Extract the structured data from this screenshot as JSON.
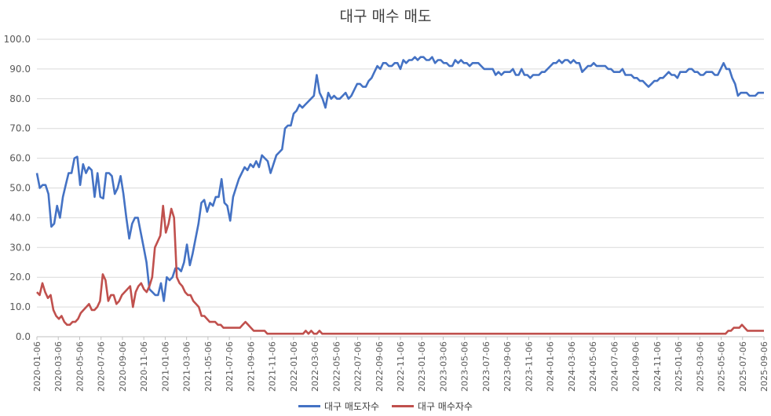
{
  "chart_data": {
    "type": "line",
    "title": "대구 매수 매도",
    "xlabel": "",
    "ylabel": "",
    "ylim": [
      0,
      100
    ],
    "yticks": [
      "0.0",
      "10.0",
      "20.0",
      "30.0",
      "40.0",
      "50.0",
      "60.0",
      "70.0",
      "80.0",
      "90.0",
      "100.0"
    ],
    "x_tick_labels": [
      "2020-01-06",
      "2020-03-06",
      "2020-05-06",
      "2020-07-06",
      "2020-09-06",
      "2020-11-06",
      "2021-01-06",
      "2021-03-06",
      "2021-05-06",
      "2021-07-06",
      "2021-09-06",
      "2021-11-06",
      "2022-01-06",
      "2022-03-06",
      "2022-05-06",
      "2022-07-06",
      "2022-09-06",
      "2022-11-06",
      "2023-01-06",
      "2023-03-06",
      "2023-05-06",
      "2023-07-06",
      "2023-09-06",
      "2023-11-06",
      "2024-01-06",
      "2024-03-06",
      "2024-05-06",
      "2024-07-06",
      "2024-09-06",
      "2024-11-06",
      "2025-01-06",
      "2025-03-06",
      "2025-05-06",
      "2025-07-06",
      "2025-09-06"
    ],
    "grid": true,
    "legend_position": "bottom",
    "series": [
      {
        "name": "대구 매도자수",
        "color": "#4472C4",
        "values": [
          55,
          50,
          51,
          51,
          48,
          37,
          38,
          44,
          40,
          47,
          51,
          55,
          55,
          60,
          60.5,
          51,
          58,
          55,
          57,
          56,
          47,
          55,
          47,
          46.5,
          55,
          55,
          54,
          48,
          50,
          54,
          48,
          40,
          33,
          38,
          40,
          40,
          35,
          30,
          25,
          16,
          15,
          14,
          14,
          18,
          12,
          20,
          19,
          20,
          23,
          23,
          22,
          25,
          31,
          24,
          28,
          33,
          38,
          45,
          46,
          42,
          45,
          44,
          47,
          47,
          53,
          45,
          44,
          39,
          47,
          50,
          53,
          55,
          57,
          56,
          58,
          57,
          59,
          57,
          61,
          60,
          59,
          55,
          58,
          61,
          62,
          63,
          70,
          71,
          71,
          75,
          76,
          78,
          77,
          78,
          79,
          80,
          81,
          88,
          82,
          80,
          77,
          82,
          80,
          81,
          80,
          80,
          81,
          82,
          80,
          81,
          83,
          85,
          85,
          84,
          84,
          86,
          87,
          89,
          91,
          90,
          92,
          92,
          91,
          91,
          92,
          92,
          90,
          93,
          92,
          93,
          93,
          94,
          93,
          94,
          94,
          93,
          93,
          94,
          92,
          93,
          93,
          92,
          92,
          91,
          91,
          93,
          92,
          93,
          92,
          92,
          91,
          92,
          92,
          92,
          91,
          90,
          90,
          90,
          90,
          88,
          89,
          88,
          89,
          89,
          89,
          90,
          88,
          88,
          90,
          88,
          88,
          87,
          88,
          88,
          88,
          89,
          89,
          90,
          91,
          92,
          92,
          93,
          92,
          93,
          93,
          92,
          93,
          92,
          92,
          89,
          90,
          91,
          91,
          92,
          91,
          91,
          91,
          91,
          90,
          90,
          89,
          89,
          89,
          90,
          88,
          88,
          88,
          87,
          87,
          86,
          86,
          85,
          84,
          85,
          86,
          86,
          87,
          87,
          88,
          89,
          88,
          88,
          87,
          89,
          89,
          89,
          90,
          90,
          89,
          89,
          88,
          88,
          89,
          89,
          89,
          88,
          88,
          90,
          92,
          90,
          90,
          87,
          85,
          81,
          82,
          82,
          82,
          81,
          81,
          81,
          82,
          82,
          82
        ]
      },
      {
        "name": "대구 매수자수",
        "color": "#C0504D",
        "values": [
          15,
          14,
          18,
          15,
          13,
          14,
          9,
          7,
          6,
          7,
          5,
          4,
          4,
          5,
          5,
          6,
          8,
          9,
          10,
          11,
          9,
          9,
          10,
          12,
          21,
          19,
          12,
          14,
          14,
          11,
          12,
          14,
          15,
          16,
          17,
          10,
          15,
          17,
          18,
          16,
          15,
          17,
          20,
          30,
          32,
          34,
          44,
          35,
          38,
          43,
          40,
          20,
          18,
          17,
          15,
          14,
          14,
          12,
          11,
          10,
          7,
          7,
          6,
          5,
          5,
          5,
          4,
          4,
          3,
          3,
          3,
          3,
          3,
          3,
          3,
          4,
          5,
          4,
          3,
          2,
          2,
          2,
          2,
          2,
          1,
          1,
          1,
          1,
          1,
          1,
          1,
          1,
          1,
          1,
          1,
          1,
          1,
          1,
          2,
          1,
          2,
          1,
          1,
          2,
          1,
          1,
          1,
          1,
          1,
          1,
          1,
          1,
          1,
          1,
          1,
          1,
          1,
          1,
          1,
          1,
          1,
          1,
          1,
          1,
          1,
          1,
          1,
          1,
          1,
          1,
          1,
          1,
          1,
          1,
          1,
          1,
          1,
          1,
          1,
          1,
          1,
          1,
          1,
          1,
          1,
          1,
          1,
          1,
          1,
          1,
          1,
          1,
          1,
          1,
          1,
          1,
          1,
          1,
          1,
          1,
          1,
          1,
          1,
          1,
          1,
          1,
          1,
          1,
          1,
          1,
          1,
          1,
          1,
          1,
          1,
          1,
          1,
          1,
          1,
          1,
          1,
          1,
          1,
          1,
          1,
          1,
          1,
          1,
          1,
          1,
          1,
          1,
          1,
          1,
          1,
          1,
          1,
          1,
          1,
          1,
          1,
          1,
          1,
          1,
          1,
          1,
          1,
          1,
          1,
          1,
          1,
          1,
          1,
          1,
          1,
          1,
          1,
          1,
          1,
          1,
          1,
          1,
          1,
          1,
          1,
          1,
          1,
          1,
          1,
          1,
          1,
          1,
          1,
          1,
          1,
          1,
          1,
          1,
          1,
          1,
          1,
          1,
          1,
          1,
          1,
          1,
          1,
          1,
          1,
          1,
          1,
          1,
          2,
          2,
          3,
          3,
          3,
          4,
          3,
          2,
          2,
          2,
          2,
          2,
          2,
          2
        ]
      }
    ]
  }
}
